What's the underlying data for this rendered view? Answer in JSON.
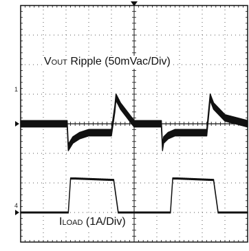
{
  "chart_data": {
    "type": "line",
    "grid": true,
    "divisions": {
      "x": 10,
      "y": 8
    },
    "series": [
      {
        "name": "VOUT Ripple (50mVac/Div)",
        "label": {
          "main1": "V",
          "sub1": "OUT",
          "main2": " Ripple (50mVac/Div)"
        },
        "channel_marker": "1",
        "x_div": [
          0.0,
          2.05,
          2.1,
          2.3,
          2.6,
          3.0,
          4.0,
          4.15,
          4.2,
          4.4,
          4.8,
          5.0,
          6.2,
          6.25,
          6.3,
          6.5,
          6.8,
          7.2,
          8.2,
          8.3,
          8.35,
          8.5,
          9.0,
          10.0
        ],
        "y_div": [
          0.0,
          0.0,
          -0.8,
          -0.55,
          -0.4,
          -0.3,
          -0.3,
          0.5,
          0.9,
          0.6,
          0.2,
          0.0,
          0.0,
          -0.8,
          -0.55,
          -0.4,
          -0.3,
          -0.3,
          -0.3,
          0.5,
          0.9,
          0.6,
          0.2,
          0.0
        ],
        "noise_band_div": 0.22
      },
      {
        "name": "ILOAD (1A/Div)",
        "label": {
          "main1": "I",
          "sub1": "LOAD",
          "main2": " (1A/Div)"
        },
        "channel_marker": "4",
        "x_div": [
          0.0,
          2.1,
          2.2,
          2.4,
          4.1,
          4.3,
          5.0,
          6.6,
          6.7,
          6.9,
          8.5,
          8.7,
          10.0
        ],
        "y_div": [
          -3.0,
          -3.0,
          -1.85,
          -1.85,
          -1.9,
          -3.0,
          -3.0,
          -3.0,
          -1.85,
          -1.85,
          -1.9,
          -3.0,
          -3.0
        ],
        "noise_band_div": 0.04
      }
    ]
  }
}
